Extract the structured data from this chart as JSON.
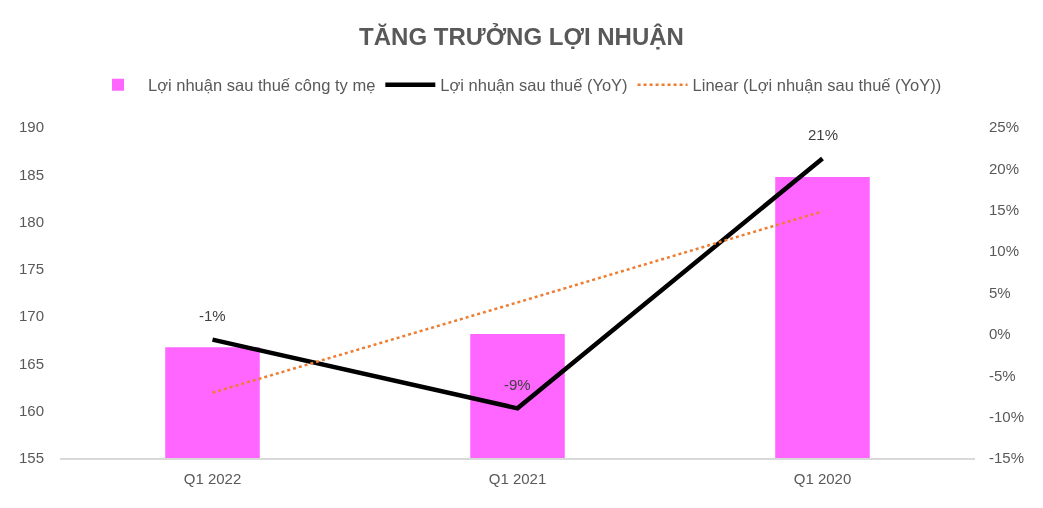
{
  "chart_data": {
    "type": "bar",
    "title": "TĂNG TRƯỞNG LỢI NHUẬN",
    "categories": [
      "Q1 2022",
      "Q1 2021",
      "Q1 2020"
    ],
    "series": [
      {
        "name": "Lợi nhuận sau thuế công ty mẹ",
        "color": "#ff66ff",
        "values": [
          166.7,
          168.1,
          184.7
        ]
      },
      {
        "name": "Lợi nhuận sau thuế (YoY)",
        "type": "line",
        "axis": "y2",
        "color": "#000000",
        "line_style": "solid",
        "values": [
          -0.7,
          -9.0,
          21.2
        ],
        "value_labels": [
          "-1%",
          "-9%",
          "21%"
        ]
      },
      {
        "name": "Linear (Lợi nhuận sau thuế (YoY))",
        "type": "line",
        "axis": "y2",
        "color": "#ed7d31",
        "line_style": "dotted",
        "values": [
          -7.1,
          3.8,
          14.8
        ]
      }
    ],
    "ylim": [
      155,
      190
    ],
    "yticks": [
      155,
      160,
      165,
      170,
      175,
      180,
      185,
      190
    ],
    "y2lim": [
      -15,
      25
    ],
    "y2ticks": [
      {
        "value": -15,
        "label": "-15%"
      },
      {
        "value": -10,
        "label": "-10%"
      },
      {
        "value": -5,
        "label": "-5%"
      },
      {
        "value": 0,
        "label": "0%"
      },
      {
        "value": 5,
        "label": "5%"
      },
      {
        "value": 10,
        "label": "10%"
      },
      {
        "value": 15,
        "label": "15%"
      },
      {
        "value": 20,
        "label": "20%"
      },
      {
        "value": 25,
        "label": "25%"
      }
    ],
    "legend": "top",
    "marker": "none"
  }
}
